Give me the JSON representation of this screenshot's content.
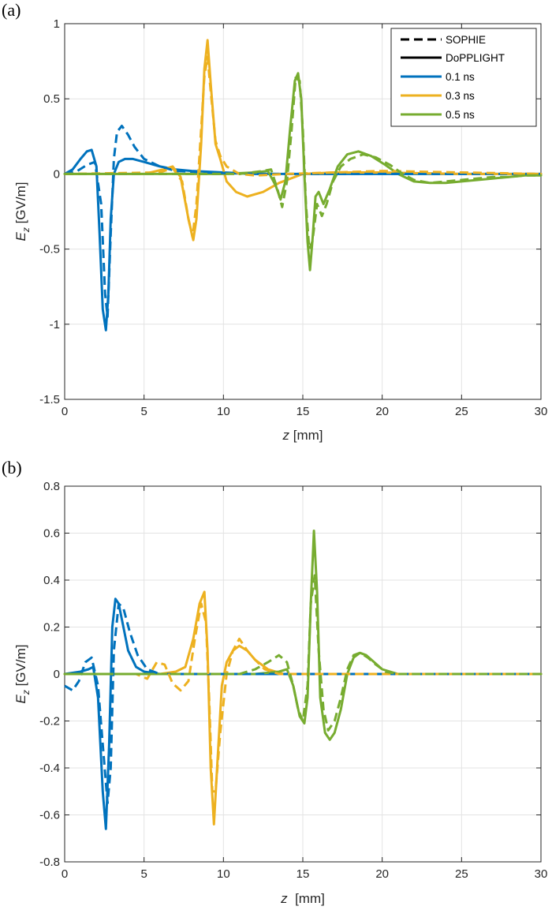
{
  "chart_data": [
    {
      "type": "line",
      "panel_label": "(a)",
      "xlabel_var": "z",
      "xlabel_unit": " [mm]",
      "ylabel_var": "E",
      "ylabel_sub": "z",
      "ylabel_unit": " [GV/m]",
      "xlim": [
        0,
        30
      ],
      "ylim": [
        -1.5,
        1
      ],
      "xticks": [
        0,
        5,
        10,
        15,
        20,
        25,
        30
      ],
      "yticks": [
        -1.5,
        -1,
        -0.5,
        0,
        0.5,
        1
      ],
      "xtick_labels": [
        "0",
        "5",
        "10",
        "15",
        "20",
        "25",
        "30"
      ],
      "ytick_labels": [
        "-1.5",
        "-1",
        "-0.5",
        "0",
        "0.5",
        "1"
      ],
      "grid": true,
      "legend_position": "top-right",
      "legend": [
        {
          "label": "SOPHIE",
          "style": "dashed",
          "color": "#000000"
        },
        {
          "label": "DoPPLIGHT",
          "style": "solid",
          "color": "#000000"
        },
        {
          "label": "0.1 ns",
          "style": "solid",
          "color": "#0072BD"
        },
        {
          "label": "0.3 ns",
          "style": "solid",
          "color": "#EDB120"
        },
        {
          "label": "0.5 ns",
          "style": "solid",
          "color": "#77AC30"
        }
      ],
      "series": [
        {
          "time": "0.1 ns",
          "code": "DoPPLIGHT",
          "style": "solid",
          "color": "#0072BD",
          "x": [
            0,
            0.5,
            1.0,
            1.4,
            1.7,
            2.0,
            2.2,
            2.4,
            2.6,
            2.75,
            2.9,
            3.1,
            3.4,
            3.8,
            4.3,
            5.0,
            6.0,
            7.0,
            8.0,
            10.0,
            12.0,
            15.0,
            20.0,
            25.0,
            30.0
          ],
          "y": [
            0.0,
            0.03,
            0.1,
            0.15,
            0.16,
            0.05,
            -0.4,
            -0.9,
            -1.04,
            -0.8,
            -0.3,
            0.0,
            0.08,
            0.1,
            0.1,
            0.08,
            0.05,
            0.03,
            0.02,
            0.01,
            0.0,
            0.0,
            0.0,
            0.0,
            0.0
          ]
        },
        {
          "time": "0.1 ns",
          "code": "SOPHIE",
          "style": "dashed",
          "color": "#0072BD",
          "x": [
            0,
            0.8,
            1.4,
            1.9,
            2.3,
            2.55,
            2.7,
            2.9,
            3.1,
            3.3,
            3.6,
            4.0,
            4.4,
            5.0,
            6.0,
            7.0,
            9.0,
            12.0,
            30.0
          ],
          "y": [
            0.0,
            0.02,
            0.06,
            0.08,
            -0.2,
            -0.8,
            -0.95,
            -0.4,
            0.1,
            0.28,
            0.32,
            0.26,
            0.18,
            0.1,
            0.05,
            0.02,
            0.01,
            0.0,
            0.0
          ]
        },
        {
          "time": "0.3 ns",
          "code": "DoPPLIGHT",
          "style": "solid",
          "color": "#EDB120",
          "x": [
            0,
            5.0,
            6.2,
            6.8,
            7.3,
            7.8,
            8.1,
            8.3,
            8.6,
            8.8,
            9.0,
            9.2,
            9.5,
            9.8,
            10.2,
            10.8,
            11.5,
            12.5,
            13.5,
            15.0,
            17.0,
            20.0,
            25.0,
            30.0
          ],
          "y": [
            0.0,
            0.0,
            0.03,
            0.05,
            -0.02,
            -0.3,
            -0.44,
            -0.3,
            0.2,
            0.7,
            0.89,
            0.6,
            0.2,
            0.1,
            -0.05,
            -0.12,
            -0.15,
            -0.12,
            -0.06,
            0.0,
            0.01,
            0.01,
            0.0,
            0.0
          ]
        },
        {
          "time": "0.3 ns",
          "code": "SOPHIE",
          "style": "dashed",
          "color": "#EDB120",
          "x": [
            0,
            6.0,
            6.8,
            7.4,
            7.8,
            8.05,
            8.3,
            8.6,
            8.8,
            9.0,
            9.2,
            9.5,
            9.8,
            10.2,
            11.0,
            12.0,
            14.0,
            17.0,
            20.0,
            25.0,
            30.0
          ],
          "y": [
            0.0,
            0.01,
            0.04,
            -0.05,
            -0.3,
            -0.42,
            -0.2,
            0.3,
            0.65,
            0.78,
            0.55,
            0.22,
            0.12,
            0.05,
            0.0,
            -0.01,
            0.0,
            0.01,
            0.02,
            0.01,
            0.0
          ]
        },
        {
          "time": "0.5 ns",
          "code": "DoPPLIGHT",
          "style": "solid",
          "color": "#77AC30",
          "x": [
            0,
            10.0,
            12.0,
            12.8,
            13.3,
            13.6,
            13.9,
            14.2,
            14.5,
            14.7,
            14.9,
            15.1,
            15.3,
            15.45,
            15.6,
            15.8,
            16.0,
            16.3,
            16.7,
            17.2,
            17.8,
            18.5,
            19.3,
            20.2,
            21.0,
            22.0,
            23.0,
            24.0,
            25.0,
            26.0,
            27.0,
            28.0,
            29.0,
            30.0
          ],
          "y": [
            0.0,
            0.0,
            0.01,
            0.02,
            -0.08,
            -0.17,
            -0.05,
            0.3,
            0.62,
            0.67,
            0.5,
            0.0,
            -0.45,
            -0.64,
            -0.45,
            -0.15,
            -0.12,
            -0.2,
            -0.1,
            0.05,
            0.13,
            0.15,
            0.12,
            0.06,
            0.0,
            -0.05,
            -0.06,
            -0.06,
            -0.05,
            -0.04,
            -0.03,
            -0.02,
            -0.01,
            -0.01
          ]
        },
        {
          "time": "0.5 ns",
          "code": "SOPHIE",
          "style": "dashed",
          "color": "#77AC30",
          "x": [
            0,
            11.0,
            12.5,
            13.0,
            13.4,
            13.7,
            14.0,
            14.3,
            14.55,
            14.8,
            15.0,
            15.2,
            15.4,
            15.6,
            15.9,
            16.2,
            16.5,
            16.9,
            17.4,
            18.0,
            18.8,
            19.6,
            20.5,
            21.3,
            22.0,
            23.0,
            24.0,
            25.0,
            26.0,
            27.0,
            28.0,
            29.0,
            30.0
          ],
          "y": [
            0.0,
            0.0,
            0.02,
            0.03,
            -0.1,
            -0.22,
            -0.05,
            0.3,
            0.64,
            0.62,
            0.3,
            -0.2,
            -0.5,
            -0.45,
            -0.2,
            -0.28,
            -0.2,
            -0.05,
            0.05,
            0.1,
            0.13,
            0.11,
            0.06,
            0.0,
            -0.04,
            -0.06,
            -0.05,
            -0.04,
            -0.03,
            -0.02,
            -0.02,
            -0.01,
            -0.01
          ]
        }
      ]
    },
    {
      "type": "line",
      "panel_label": "(b)",
      "xlabel_var": "z",
      "xlabel_unit": "  [mm]",
      "ylabel_var": "E",
      "ylabel_sub": "z",
      "ylabel_unit": " [GV/m]",
      "xlim": [
        0,
        30
      ],
      "ylim": [
        -0.8,
        0.8
      ],
      "xticks": [
        0,
        5,
        10,
        15,
        20,
        25,
        30
      ],
      "yticks": [
        -0.8,
        -0.6,
        -0.4,
        -0.2,
        0,
        0.2,
        0.4,
        0.6,
        0.8
      ],
      "xtick_labels": [
        "0",
        "5",
        "10",
        "15",
        "20",
        "25",
        "30"
      ],
      "ytick_labels": [
        "-0.8",
        "-0.6",
        "-0.4",
        "-0.2",
        "0",
        "0.2",
        "0.4",
        "0.6",
        "0.8"
      ],
      "grid": true,
      "series": [
        {
          "time": "0.1 ns",
          "code": "DoPPLIGHT",
          "style": "solid",
          "color": "#0072BD",
          "x": [
            0,
            1.0,
            1.5,
            1.8,
            2.1,
            2.4,
            2.6,
            2.8,
            3.0,
            3.2,
            3.4,
            3.7,
            4.0,
            4.5,
            5.0,
            6.0,
            8.0,
            10.0,
            15.0,
            20.0,
            25.0,
            30.0
          ],
          "y": [
            0.0,
            0.01,
            0.02,
            0.03,
            -0.1,
            -0.5,
            -0.66,
            -0.3,
            0.2,
            0.32,
            0.3,
            0.2,
            0.1,
            0.03,
            0.01,
            0.0,
            0.0,
            0.0,
            0.0,
            0.0,
            0.0,
            0.0
          ]
        },
        {
          "time": "0.1 ns",
          "code": "SOPHIE",
          "style": "dashed",
          "color": "#0072BD",
          "x": [
            0,
            0.5,
            0.9,
            1.3,
            1.7,
            2.1,
            2.4,
            2.7,
            2.9,
            3.1,
            3.4,
            3.7,
            4.1,
            4.6,
            5.2,
            6.0,
            8.0,
            12.0,
            30.0
          ],
          "y": [
            -0.05,
            -0.07,
            -0.03,
            0.05,
            0.07,
            -0.05,
            -0.3,
            -0.55,
            -0.4,
            0.1,
            0.3,
            0.28,
            0.18,
            0.08,
            0.02,
            0.0,
            0.0,
            0.0,
            0.0
          ]
        },
        {
          "time": "0.3 ns",
          "code": "DoPPLIGHT",
          "style": "solid",
          "color": "#EDB120",
          "x": [
            0,
            6.0,
            7.0,
            7.6,
            8.1,
            8.5,
            8.8,
            9.0,
            9.2,
            9.4,
            9.6,
            9.9,
            10.2,
            10.6,
            11.0,
            11.5,
            12.0,
            12.8,
            13.8,
            15.0,
            20.0,
            30.0
          ],
          "y": [
            0.0,
            0.0,
            0.01,
            0.03,
            0.15,
            0.3,
            0.35,
            0.1,
            -0.4,
            -0.64,
            -0.4,
            -0.05,
            0.05,
            0.1,
            0.12,
            0.1,
            0.06,
            0.02,
            0.0,
            0.0,
            0.0,
            0.0
          ]
        },
        {
          "time": "0.3 ns",
          "code": "SOPHIE",
          "style": "dashed",
          "color": "#EDB120",
          "x": [
            0,
            4.5,
            5.2,
            5.8,
            6.3,
            6.8,
            7.3,
            7.8,
            8.2,
            8.6,
            8.9,
            9.1,
            9.3,
            9.5,
            9.8,
            10.2,
            10.6,
            11.0,
            11.5,
            12.0,
            12.6,
            13.5,
            15.0,
            20.0,
            30.0
          ],
          "y": [
            0.0,
            0.0,
            -0.02,
            0.05,
            0.04,
            -0.04,
            -0.07,
            -0.03,
            0.15,
            0.3,
            0.22,
            -0.1,
            -0.5,
            -0.5,
            -0.25,
            0.0,
            0.1,
            0.15,
            0.1,
            0.06,
            0.02,
            0.0,
            0.0,
            0.0,
            0.0
          ]
        },
        {
          "time": "0.5 ns",
          "code": "DoPPLIGHT",
          "style": "solid",
          "color": "#77AC30",
          "x": [
            0,
            12.0,
            13.5,
            14.0,
            14.4,
            14.8,
            15.1,
            15.3,
            15.5,
            15.7,
            15.9,
            16.1,
            16.4,
            16.7,
            17.0,
            17.4,
            17.8,
            18.2,
            18.6,
            19.0,
            19.5,
            20.0,
            21.0,
            22.0,
            25.0,
            30.0
          ],
          "y": [
            0.0,
            0.0,
            0.01,
            0.02,
            -0.05,
            -0.18,
            -0.21,
            -0.1,
            0.3,
            0.61,
            0.35,
            -0.1,
            -0.25,
            -0.28,
            -0.25,
            -0.15,
            0.0,
            0.07,
            0.09,
            0.08,
            0.05,
            0.02,
            0.0,
            0.0,
            0.0,
            0.0
          ]
        },
        {
          "time": "0.5 ns",
          "code": "SOPHIE",
          "style": "dashed",
          "color": "#77AC30",
          "x": [
            0,
            11.0,
            12.0,
            12.8,
            13.5,
            14.0,
            14.4,
            14.7,
            15.0,
            15.3,
            15.5,
            15.75,
            16.0,
            16.3,
            16.6,
            17.0,
            17.4,
            17.8,
            18.2,
            18.6,
            19.1,
            19.6,
            20.2,
            21.0,
            22.0,
            25.0,
            30.0
          ],
          "y": [
            0.0,
            0.0,
            0.02,
            0.05,
            0.08,
            0.05,
            -0.05,
            -0.15,
            -0.2,
            -0.05,
            0.3,
            0.42,
            0.1,
            -0.15,
            -0.24,
            -0.2,
            -0.1,
            0.02,
            0.08,
            0.09,
            0.07,
            0.04,
            0.01,
            0.0,
            0.0,
            0.0,
            0.0
          ]
        }
      ]
    }
  ]
}
